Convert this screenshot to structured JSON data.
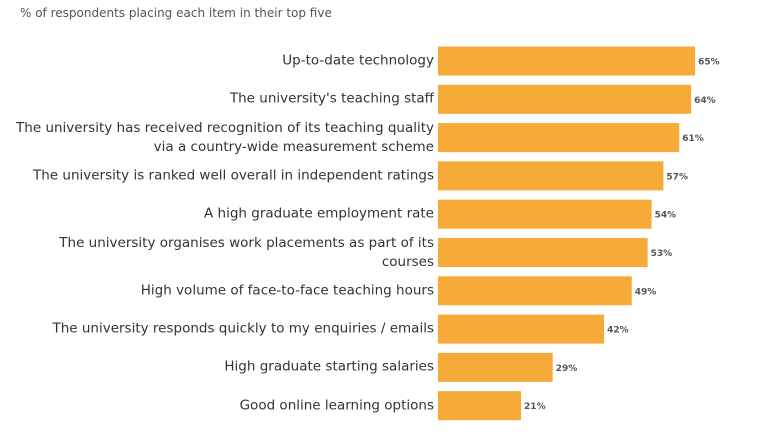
{
  "chart_data": {
    "type": "bar",
    "orientation": "horizontal",
    "subtitle": "% of respondents placing each item in their top five",
    "categories": [
      "Up-to-date technology",
      "The university's teaching staff",
      "The university has received recognition of its teaching quality\nvia a country-wide measurement scheme",
      "The university is ranked well overall in independent ratings",
      "A high graduate employment rate",
      "The university organises work placements as part of its courses",
      "High volume of face-to-face teaching hours",
      "The university responds quickly to my enquiries / emails",
      "High graduate starting salaries",
      "Good online learning options"
    ],
    "values": [
      65,
      64,
      61,
      57,
      54,
      53,
      49,
      42,
      29,
      21
    ],
    "value_labels": [
      "65%",
      "64%",
      "61%",
      "57%",
      "54%",
      "53%",
      "49%",
      "42%",
      "29%",
      "21%"
    ],
    "color": "#f6aa37"
  }
}
